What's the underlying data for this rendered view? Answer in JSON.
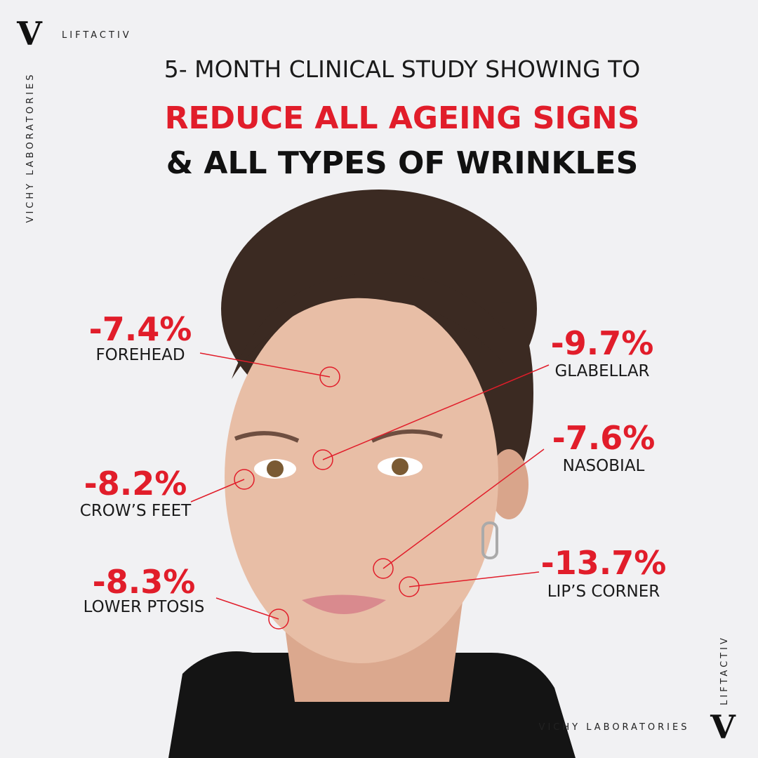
{
  "brand": {
    "logo": "V",
    "name": "LIFTACTIV",
    "side_text": "VICHY LABORATORIES"
  },
  "headline": {
    "line1": "5- MONTH CLINICAL STUDY SHOWING TO",
    "line2": "REDUCE ALL AGEING SIGNS",
    "line3": "& ALL TYPES OF WRINKLES"
  },
  "callouts": [
    {
      "value": "-7.4%",
      "label": "FOREHEAD"
    },
    {
      "value": "-9.7%",
      "label": "GLABELLAR"
    },
    {
      "value": "-8.2%",
      "label": "CROW’S FEET"
    },
    {
      "value": "-7.6%",
      "label": "NASOBIAL"
    },
    {
      "value": "-8.3%",
      "label": "LOWER PTOSIS"
    },
    {
      "value": "-13.7%",
      "label": "LIP’S CORNER"
    }
  ],
  "footer": {
    "brand": "VICHY LABORATORIES",
    "side_text": "LIFTACTIV",
    "logo": "V"
  }
}
